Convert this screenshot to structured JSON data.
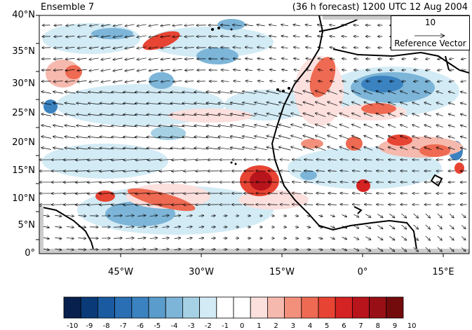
{
  "panel": {
    "title_left": "Ensemble 7",
    "title_right": "(36 h forecast) 1200 UTC 12 Aug 2004"
  },
  "axes": {
    "lat_labels": [
      "40°N",
      "35°N",
      "30°N",
      "25°N",
      "20°N",
      "15°N",
      "10°N",
      "5°N",
      "0°"
    ],
    "lon_labels": [
      "45°W",
      "30°W",
      "15°W",
      "0°",
      "15°E"
    ]
  },
  "reference_vector": {
    "value": "10",
    "label": "Reference Vector"
  },
  "colorbar": {
    "labels": [
      "-10",
      "-9",
      "-8",
      "-7",
      "-6",
      "-5",
      "-4",
      "-3",
      "-2",
      "-1",
      "0",
      "1",
      "2",
      "3",
      "4",
      "5",
      "6",
      "7",
      "8",
      "9",
      "10"
    ],
    "colors": [
      "#08204d",
      "#0a3a78",
      "#1a5aa0",
      "#2a6fb4",
      "#3b82c0",
      "#5a9ccb",
      "#7db5d8",
      "#a6d1e4",
      "#d3ebf5",
      "#ffffff",
      "#ffffff",
      "#fbe0de",
      "#f6b9ae",
      "#f3907c",
      "#ee6a52",
      "#e74433",
      "#d52222",
      "#b8141c",
      "#980f16",
      "#730a0c"
    ]
  },
  "map_extent": {
    "lon_min": -60,
    "lon_max": 20,
    "lat_min": 0,
    "lat_max": 40
  }
}
